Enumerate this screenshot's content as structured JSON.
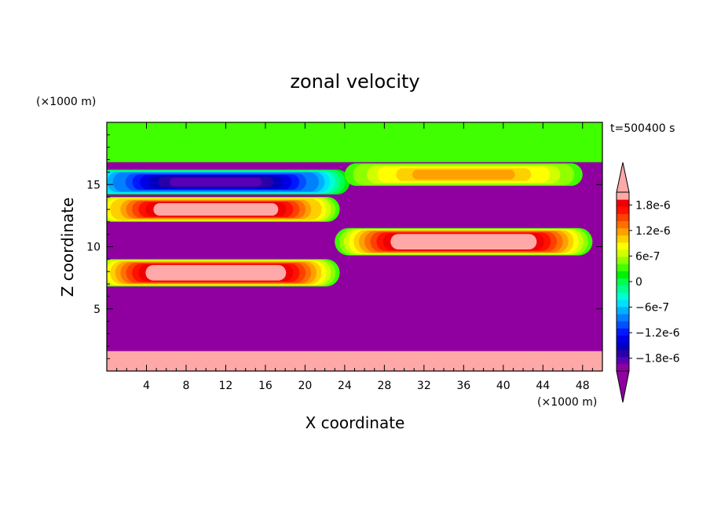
{
  "chart_data": {
    "type": "heatmap",
    "title": "zonal velocity",
    "xlabel": "X coordinate",
    "ylabel": "Z coordinate",
    "x_unit": "(×1000 m)",
    "y_unit": "(×1000 m)",
    "time_label": "t=500400 s",
    "xlim": [
      0,
      50
    ],
    "ylim": [
      0,
      20
    ],
    "x_ticks": [
      4,
      8,
      12,
      16,
      20,
      24,
      28,
      32,
      36,
      40,
      44,
      48
    ],
    "y_ticks": [
      5,
      10,
      15
    ],
    "x_tick_labels": [
      "4",
      "8",
      "12",
      "16",
      "20",
      "24",
      "28",
      "32",
      "36",
      "40",
      "44",
      "48"
    ],
    "y_tick_labels": [
      "5",
      "10",
      "15"
    ],
    "colorbar": {
      "levels": [
        -2.1e-06,
        -1.95e-06,
        -1.8e-06,
        -1.65e-06,
        -1.5e-06,
        -1.35e-06,
        -1.2e-06,
        -1.05e-06,
        -9e-07,
        -7.5e-07,
        -6e-07,
        -4.5e-07,
        -3e-07,
        -1.5e-07,
        0,
        1.5e-07,
        3e-07,
        4.5e-07,
        6e-07,
        7.5e-07,
        9e-07,
        1.05e-06,
        1.2e-06,
        1.35e-06,
        1.5e-06,
        1.65e-06,
        1.8e-06,
        1.95e-06,
        2.1e-06
      ],
      "colors": [
        "#9000a0",
        "#5a00b4",
        "#2800a8",
        "#0000c0",
        "#0000e6",
        "#0018ff",
        "#0050ff",
        "#0080ff",
        "#00b0ff",
        "#00e0ff",
        "#00ffd0",
        "#00ff90",
        "#00ff50",
        "#00f000",
        "#40ff00",
        "#90ff00",
        "#d0ff00",
        "#ffff00",
        "#ffd000",
        "#ffa000",
        "#ff7000",
        "#ff4000",
        "#ff1000",
        "#f00000",
        "#ffa8a8"
      ],
      "labels": [
        "1.8e-6",
        "1.2e-6",
        "6e-7",
        "0",
        "−6e-7",
        "−1.2e-6",
        "−1.8e-6"
      ],
      "label_values": [
        1.8e-06,
        1.2e-06,
        6e-07,
        0,
        -6e-07,
        -1.2e-06,
        -1.8e-06
      ],
      "under_color": "#9000a0",
      "over_color": "#ffa8a8"
    },
    "background_value": -2.2e-06,
    "fields": [
      {
        "region": "top layer",
        "x": [
          0,
          50
        ],
        "z": [
          16.8,
          20
        ],
        "value": 1e-07
      },
      {
        "region": "bottom layer",
        "x": [
          0,
          50
        ],
        "z": [
          0,
          1.6
        ],
        "value": 2.2e-06
      },
      {
        "feature": "negative jet",
        "x_center": 11,
        "z_center": 15.2,
        "half_width": 13.5,
        "half_height": 1.0,
        "amplitude": -2e-06
      },
      {
        "feature": "positive jet",
        "x_center": 11,
        "z_center": 13.0,
        "half_width": 12.5,
        "half_height": 1.0,
        "amplitude": 1.9e-06
      },
      {
        "feature": "positive jet",
        "x_center": 11,
        "z_center": 7.9,
        "half_width": 12.5,
        "half_height": 1.1,
        "amplitude": 2.2e-06
      },
      {
        "feature": "positive jet",
        "x_center": 36,
        "z_center": 15.8,
        "half_width": 12.0,
        "half_height": 0.9,
        "amplitude": 9e-07
      },
      {
        "feature": "positive jet",
        "x_center": 36,
        "z_center": 10.4,
        "half_width": 13.0,
        "half_height": 1.1,
        "amplitude": 2.2e-06
      }
    ]
  }
}
